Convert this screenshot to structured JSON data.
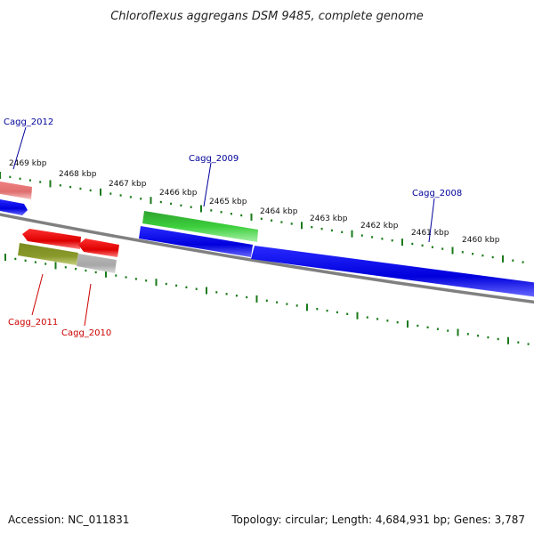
{
  "title": "Chloroflexus aggregans DSM 9485, complete genome",
  "footer": {
    "accession": "Accession: NC_011831",
    "topology": "Topology: circular; Length: 4,684,931 bp; Genes: 3,787"
  },
  "colors": {
    "forward_cds": "#0000ee",
    "forward_rna": "#22bb22",
    "reverse_cds": "#ee0000",
    "reverse_other": "#888822",
    "backbone": "#808080",
    "ticks": "#1a7a1a",
    "forward_label": "#000099",
    "reverse_label": "#cc0000"
  },
  "scale_labels": [
    "2469 kbp",
    "2468 kbp",
    "2467 kbp",
    "2466 kbp",
    "2465 kbp",
    "2464 kbp",
    "2463 kbp",
    "2462 kbp",
    "2461 kbp",
    "2460 kbp"
  ],
  "gene_labels": {
    "forward": [
      "Cagg_2012",
      "Cagg_2009",
      "Cagg_2008"
    ],
    "reverse": [
      "Cagg_2011",
      "Cagg_2010"
    ]
  }
}
